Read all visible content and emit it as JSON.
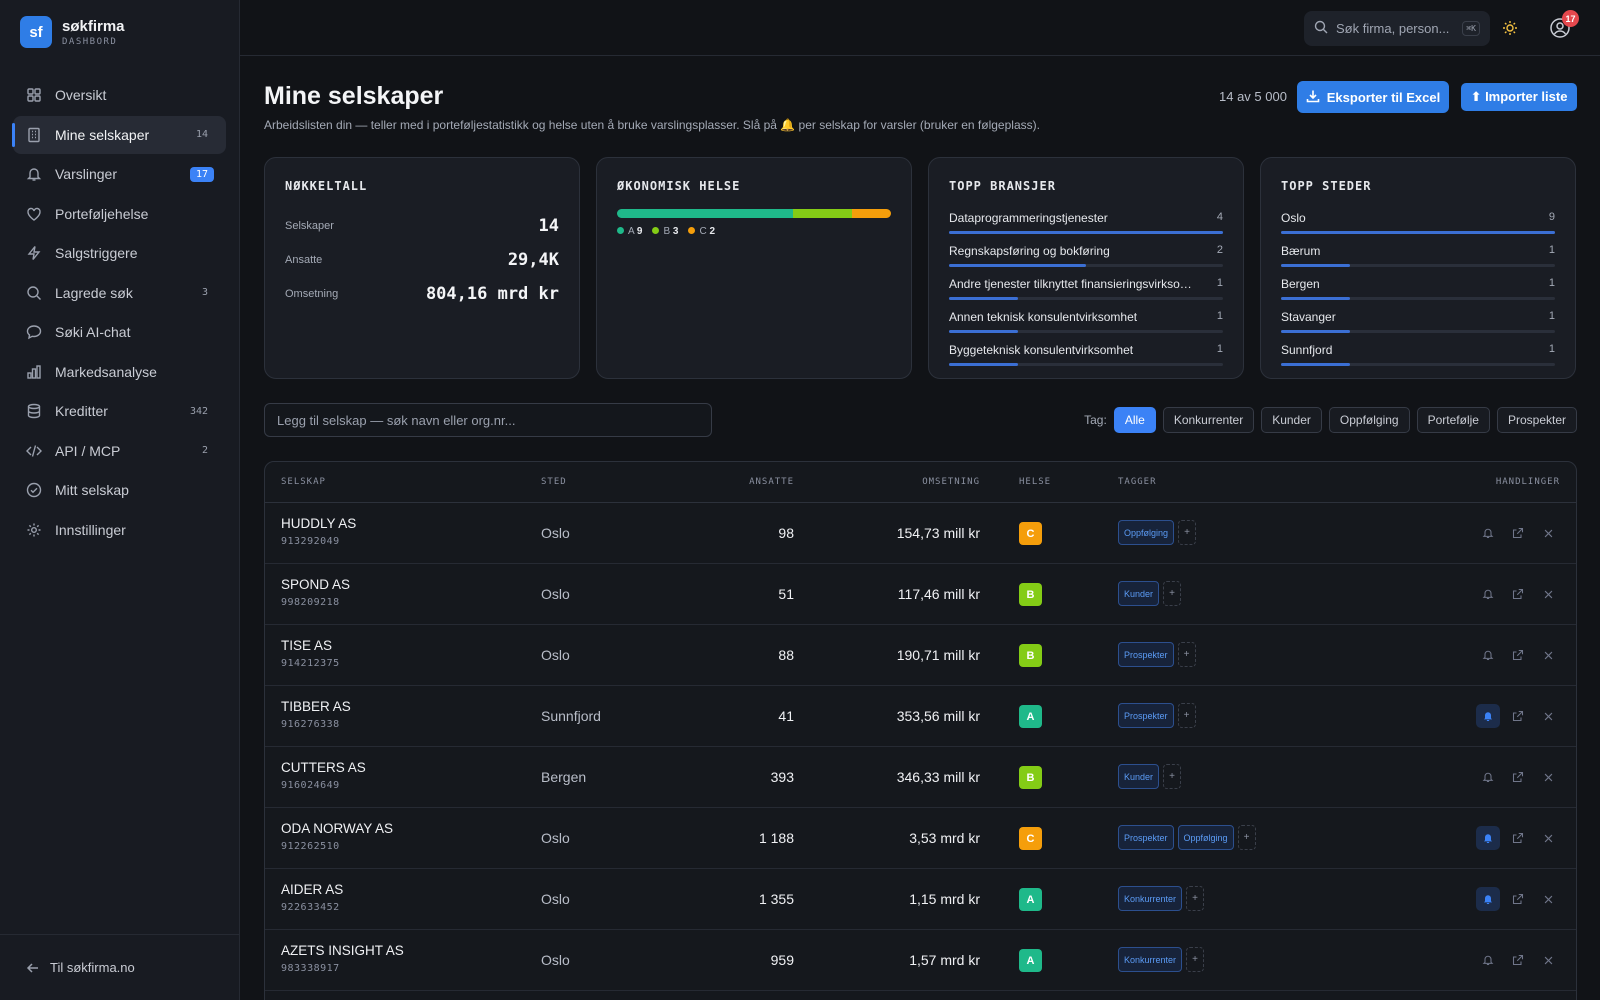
{
  "brand": {
    "logo": "sf",
    "name": "søkfirma",
    "subtitle": "DASHBORD"
  },
  "sidebar": {
    "items": [
      {
        "label": "Oversikt",
        "icon": "grid-icon",
        "badge": ""
      },
      {
        "label": "Mine selskaper",
        "icon": "building-icon",
        "badge": "14",
        "active": true
      },
      {
        "label": "Varslinger",
        "icon": "bell-icon",
        "badge": "17",
        "badge_style": "blue"
      },
      {
        "label": "Porteføljehelse",
        "icon": "heart-icon",
        "badge": ""
      },
      {
        "label": "Salgstriggere",
        "icon": "bolt-icon",
        "badge": ""
      },
      {
        "label": "Lagrede søk",
        "icon": "search-icon",
        "badge": "3"
      },
      {
        "label": "Søki AI-chat",
        "icon": "chat-icon",
        "badge": ""
      },
      {
        "label": "Markedsanalyse",
        "icon": "bar-chart-icon",
        "badge": ""
      },
      {
        "label": "Kreditter",
        "icon": "database-icon",
        "badge": "342"
      },
      {
        "label": "API / MCP",
        "icon": "code-icon",
        "badge": "2"
      },
      {
        "label": "Mitt selskap",
        "icon": "check-circle-icon",
        "badge": ""
      },
      {
        "label": "Innstillinger",
        "icon": "gear-icon",
        "badge": ""
      }
    ],
    "footer_link": "Til søkfirma.no"
  },
  "topbar": {
    "search_placeholder": "Søk firma, person...",
    "shortcut": "⌘K",
    "notification_count": "17"
  },
  "page": {
    "title": "Mine selskaper",
    "subtitle": "Arbeidslisten din — teller med i porteføljestatistikk og helse uten å bruke varslingsplasser. Slå på 🔔 per selskap for varsler (bruker en følgeplass).",
    "count_text": "14 av 5 000",
    "export_label": "Eksporter til Excel",
    "import_label": "⬆ Importer liste"
  },
  "cards": {
    "nokkeltall": {
      "title": "NØKKELTALL",
      "rows": [
        {
          "label": "Selskaper",
          "value": "14"
        },
        {
          "label": "Ansatte",
          "value": "29,4K"
        },
        {
          "label": "Omsetning",
          "value": "804,16 mrd kr"
        }
      ]
    },
    "helse": {
      "title": "ØKONOMISK HELSE",
      "segments": [
        {
          "grade": "A",
          "count": 9,
          "color": "#1fb98a"
        },
        {
          "grade": "B",
          "count": 3,
          "color": "#84cc16"
        },
        {
          "grade": "C",
          "count": 2,
          "color": "#f59e0b"
        }
      ]
    },
    "bransjer": {
      "title": "TOPP BRANSJER",
      "max": 4,
      "items": [
        {
          "label": "Dataprogrammeringstjenester",
          "count": 4
        },
        {
          "label": "Regnskapsføring og bokføring",
          "count": 2
        },
        {
          "label": "Andre tjenester tilknyttet finansieringsvirksomhet",
          "count": 1
        },
        {
          "label": "Annen teknisk konsulentvirksomhet",
          "count": 1
        },
        {
          "label": "Byggeteknisk konsulentvirksomhet",
          "count": 1
        }
      ]
    },
    "steder": {
      "title": "TOPP STEDER",
      "max": 9,
      "items": [
        {
          "label": "Oslo",
          "count": 9
        },
        {
          "label": "Bærum",
          "count": 1
        },
        {
          "label": "Bergen",
          "count": 1
        },
        {
          "label": "Stavanger",
          "count": 1
        },
        {
          "label": "Sunnfjord",
          "count": 1
        }
      ]
    }
  },
  "add_company": {
    "placeholder": "Legg til selskap — søk navn eller org.nr..."
  },
  "tag_filter": {
    "label": "Tag:",
    "options": [
      "Alle",
      "Konkurrenter",
      "Kunder",
      "Oppfølging",
      "Portefølje",
      "Prospekter"
    ],
    "selected": "Alle"
  },
  "table": {
    "headers": {
      "selskap": "SELSKAP",
      "sted": "STED",
      "ansatte": "ANSATTE",
      "omsetning": "OMSETNING",
      "helse": "HELSE",
      "tagger": "TAGGER",
      "handlinger": "HANDLINGER"
    },
    "rows": [
      {
        "name": "HUDDLY AS",
        "org": "913292049",
        "sted": "Oslo",
        "ansatte": "98",
        "omsetning": "154,73 mill kr",
        "helse": "C",
        "tags": [
          "Oppfølging"
        ],
        "alert": false
      },
      {
        "name": "SPOND AS",
        "org": "998209218",
        "sted": "Oslo",
        "ansatte": "51",
        "omsetning": "117,46 mill kr",
        "helse": "B",
        "tags": [
          "Kunder"
        ],
        "alert": false
      },
      {
        "name": "TISE AS",
        "org": "914212375",
        "sted": "Oslo",
        "ansatte": "88",
        "omsetning": "190,71 mill kr",
        "helse": "B",
        "tags": [
          "Prospekter"
        ],
        "alert": false
      },
      {
        "name": "TIBBER AS",
        "org": "916276338",
        "sted": "Sunnfjord",
        "ansatte": "41",
        "omsetning": "353,56 mill kr",
        "helse": "A",
        "tags": [
          "Prospekter"
        ],
        "alert": true
      },
      {
        "name": "CUTTERS AS",
        "org": "916024649",
        "sted": "Bergen",
        "ansatte": "393",
        "omsetning": "346,33 mill kr",
        "helse": "B",
        "tags": [
          "Kunder"
        ],
        "alert": false
      },
      {
        "name": "ODA NORWAY AS",
        "org": "912262510",
        "sted": "Oslo",
        "ansatte": "1 188",
        "omsetning": "3,53 mrd kr",
        "helse": "C",
        "tags": [
          "Prospekter",
          "Oppfølging"
        ],
        "alert": true
      },
      {
        "name": "AIDER AS",
        "org": "922633452",
        "sted": "Oslo",
        "ansatte": "1 355",
        "omsetning": "1,15 mrd kr",
        "helse": "A",
        "tags": [
          "Konkurrenter"
        ],
        "alert": true
      },
      {
        "name": "AZETS INSIGHT AS",
        "org": "983338917",
        "sted": "Oslo",
        "ansatte": "959",
        "omsetning": "1,57 mrd kr",
        "helse": "A",
        "tags": [
          "Konkurrenter"
        ],
        "alert": false
      }
    ]
  },
  "colors": {
    "accent": "#2f7de6",
    "grade_A": "#1fb98a",
    "grade_B": "#84cc16",
    "grade_C": "#f59e0b"
  }
}
